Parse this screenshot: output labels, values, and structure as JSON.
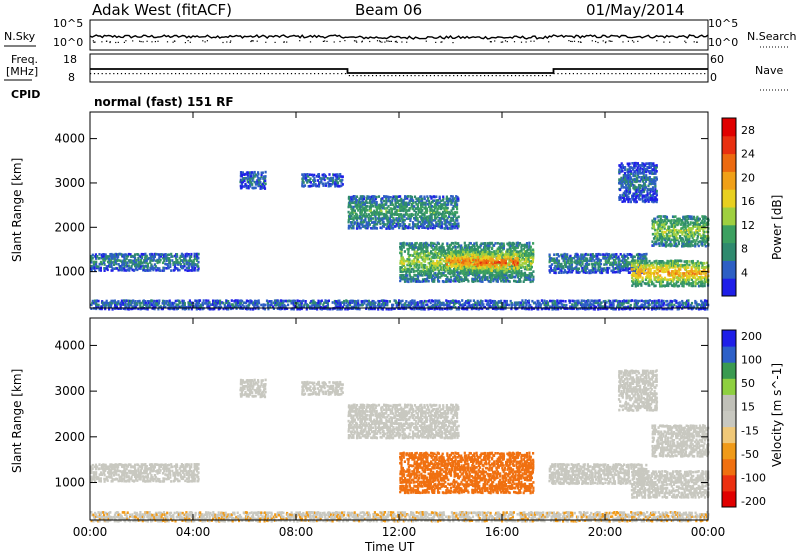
{
  "header": {
    "radar": "Adak West (fitACF)",
    "beam": "Beam 06",
    "date": "01/May/2014"
  },
  "top_panels": {
    "nsky_label": "N.Sky",
    "nsky_ticks": [
      "10^5",
      "10^0"
    ],
    "nsearch_label": "N.Search",
    "nsearch_ticks": [
      "10^5",
      "10^0"
    ],
    "freq_label_1": "Freq.",
    "freq_label_2": "[MHz]",
    "freq_ticks": [
      "18",
      "8"
    ],
    "nave_label": "Nave",
    "nave_ticks": [
      "60",
      "0"
    ],
    "cpid_label": "CPID",
    "cpid_text": "normal (fast) 151 RF"
  },
  "chart_data": [
    {
      "type": "heatmap",
      "title": "",
      "xlabel": "Time UT",
      "ylabel": "Slant Range [km]",
      "x_ticks": [
        "00:00",
        "04:00",
        "08:00",
        "12:00",
        "16:00",
        "20:00",
        "00:00"
      ],
      "xlim": [
        0,
        24
      ],
      "y_ticks": [
        1000,
        2000,
        3000,
        4000
      ],
      "ylim": [
        180,
        4600
      ],
      "colorbar": {
        "label": "Power [dB]",
        "ticks": [
          4,
          8,
          12,
          16,
          20,
          24,
          28
        ],
        "range": [
          0,
          30
        ],
        "colors": [
          "#1f1fe8",
          "#2d5fc4",
          "#2f8a6e",
          "#3ca060",
          "#9fd040",
          "#e8d020",
          "#f0a018",
          "#ec6a10",
          "#e83010",
          "#e00000"
        ]
      },
      "regions": [
        {
          "t0": 0.0,
          "t1": 4.2,
          "r0": 1050,
          "r1": 1450,
          "level": 8
        },
        {
          "t0": 5.8,
          "t1": 6.8,
          "r0": 2900,
          "r1": 3300,
          "level": 6
        },
        {
          "t0": 8.2,
          "t1": 9.8,
          "r0": 2950,
          "r1": 3250,
          "level": 6
        },
        {
          "t0": 10.0,
          "t1": 14.3,
          "r0": 2000,
          "r1": 2750,
          "level": 10
        },
        {
          "t0": 12.0,
          "t1": 17.2,
          "r0": 800,
          "r1": 1700,
          "level": 14
        },
        {
          "t0": 13.8,
          "t1": 15.6,
          "r0": 1000,
          "r1": 1500,
          "level": 22
        },
        {
          "t0": 15.0,
          "t1": 16.6,
          "r0": 1000,
          "r1": 1450,
          "level": 24
        },
        {
          "t0": 17.8,
          "t1": 21.6,
          "r0": 1000,
          "r1": 1450,
          "level": 8
        },
        {
          "t0": 21.0,
          "t1": 24.0,
          "r0": 700,
          "r1": 1300,
          "level": 20
        },
        {
          "t0": 21.8,
          "t1": 24.0,
          "r0": 1600,
          "r1": 2300,
          "level": 14
        },
        {
          "t0": 20.5,
          "t1": 22.0,
          "r0": 2600,
          "r1": 3500,
          "level": 6
        },
        {
          "t0": 0.0,
          "t1": 24.0,
          "r0": 180,
          "r1": 400,
          "level": 6
        }
      ]
    },
    {
      "type": "heatmap",
      "title": "",
      "xlabel": "Time UT",
      "ylabel": "Slant Range [km]",
      "x_ticks": [
        "00:00",
        "04:00",
        "08:00",
        "12:00",
        "16:00",
        "20:00",
        "00:00"
      ],
      "xlim": [
        0,
        24
      ],
      "y_ticks": [
        1000,
        2000,
        3000,
        4000
      ],
      "ylim": [
        180,
        4600
      ],
      "colorbar": {
        "label": "Velocity [m s^-1]",
        "ticks": [
          200,
          100,
          50,
          15,
          -15,
          -50,
          -100,
          -200
        ],
        "range": [
          -250,
          250
        ],
        "colors": [
          "#e00000",
          "#ec3010",
          "#f07010",
          "#f09a18",
          "#f0c878",
          "#c8c8c0",
          "#c0c0b8",
          "#8ed040",
          "#3a9a50",
          "#2d60c8",
          "#1f1fe8"
        ]
      },
      "regions": [
        {
          "t0": 0.0,
          "t1": 4.2,
          "r0": 1050,
          "r1": 1450,
          "velocity": 0
        },
        {
          "t0": 5.8,
          "t1": 6.8,
          "r0": 2900,
          "r1": 3300,
          "velocity": 0
        },
        {
          "t0": 8.2,
          "t1": 9.8,
          "r0": 2950,
          "r1": 3250,
          "velocity": 0
        },
        {
          "t0": 10.0,
          "t1": 14.3,
          "r0": 2000,
          "r1": 2750,
          "velocity": 0
        },
        {
          "t0": 12.0,
          "t1": 17.2,
          "r0": 800,
          "r1": 1700,
          "velocity": -60
        },
        {
          "t0": 17.8,
          "t1": 21.6,
          "r0": 1000,
          "r1": 1450,
          "velocity": 0
        },
        {
          "t0": 21.0,
          "t1": 24.0,
          "r0": 700,
          "r1": 1300,
          "velocity": 0
        },
        {
          "t0": 21.8,
          "t1": 24.0,
          "r0": 1600,
          "r1": 2300,
          "velocity": 0
        },
        {
          "t0": 20.5,
          "t1": 22.0,
          "r0": 2600,
          "r1": 3500,
          "velocity": 0
        },
        {
          "t0": 0.0,
          "t1": 24.0,
          "r0": 180,
          "r1": 400,
          "velocity": -10
        }
      ]
    }
  ],
  "freq_series": {
    "type": "line",
    "xlabel": "",
    "segments": [
      {
        "t0": 0,
        "t1": 10,
        "freq": 12.5
      },
      {
        "t0": 10,
        "t1": 18,
        "freq": 10.5
      },
      {
        "t0": 18,
        "t1": 24,
        "freq": 12.5
      }
    ]
  }
}
